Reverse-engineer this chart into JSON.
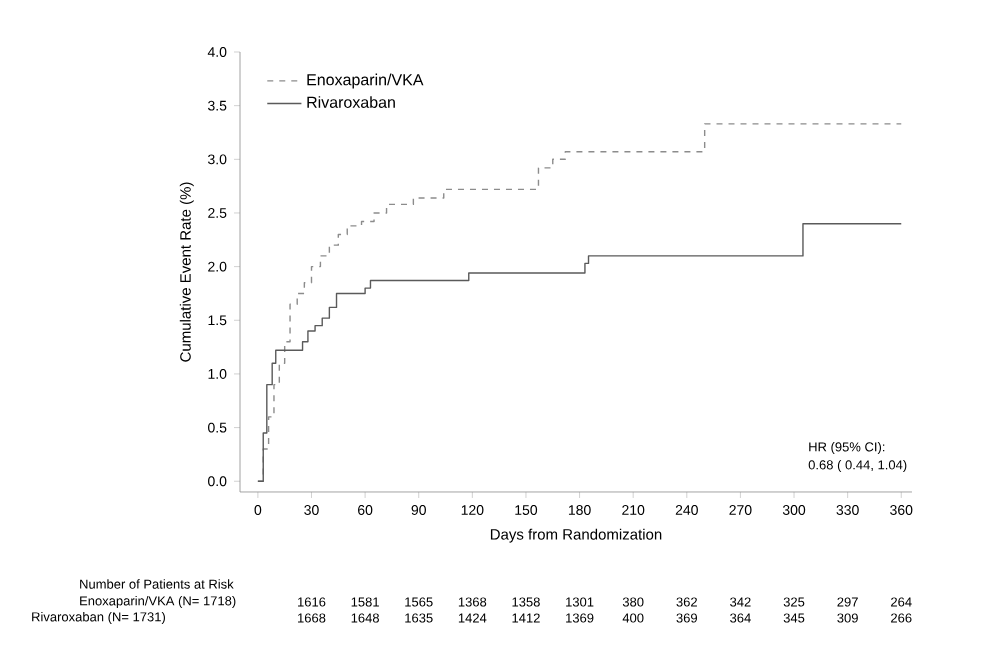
{
  "chart_data": {
    "type": "step",
    "xlabel": "Days from Randomization",
    "ylabel": "Cumulative Event Rate (%)",
    "xlim": [
      -10,
      366
    ],
    "ylim": [
      -0.1,
      4.0
    ],
    "xticks": [
      0,
      30,
      60,
      90,
      120,
      150,
      180,
      210,
      240,
      270,
      300,
      330,
      360
    ],
    "yticks": [
      {
        "value": 0,
        "label": "0.0"
      },
      0.5,
      {
        "value": 1,
        "label": "1.0"
      },
      1.5,
      {
        "value": 2,
        "label": "2.0"
      },
      2.5,
      {
        "value": 3,
        "label": "3.0"
      },
      3.5,
      {
        "value": 4,
        "label": "4.0"
      }
    ],
    "legend": "top left",
    "grid": false,
    "series": [
      {
        "name": "Enoxaparin/VKA",
        "color": "#8c8c8c",
        "line_style": "dashed",
        "x": [
          0,
          3,
          6,
          9,
          12,
          15,
          18,
          22,
          26,
          30,
          35,
          40,
          45,
          50,
          58,
          65,
          72,
          87,
          104,
          157,
          165,
          172,
          250,
          360
        ],
        "values": [
          0,
          0.3,
          0.6,
          0.9,
          1.1,
          1.3,
          1.65,
          1.75,
          1.85,
          2.0,
          2.1,
          2.2,
          2.3,
          2.38,
          2.42,
          2.5,
          2.58,
          2.64,
          2.72,
          2.92,
          3.0,
          3.07,
          3.33,
          3.33
        ]
      },
      {
        "name": "Rivaroxaban",
        "color": "#5a5a5a",
        "line_style": "solid",
        "x": [
          0,
          3,
          5,
          8,
          10,
          25,
          28,
          32,
          36,
          40,
          44,
          60,
          63,
          118,
          183,
          185,
          305,
          360
        ],
        "values": [
          0,
          0.45,
          0.9,
          1.1,
          1.22,
          1.3,
          1.4,
          1.45,
          1.52,
          1.62,
          1.75,
          1.8,
          1.87,
          1.94,
          2.03,
          2.1,
          2.4,
          2.4
        ]
      }
    ],
    "annotations": [
      "Number of Patients at Risk",
      "Enoxaparin/VKA (N= 1718)",
      "1616",
      "1581",
      "1565",
      "1368",
      "1358",
      "1301",
      "380",
      "362",
      "342",
      "325",
      "297",
      "264",
      "Rivaroxaban (N= 1731)",
      "1668",
      "1648",
      "1635",
      "1424",
      "1412",
      "1369",
      "400",
      "369",
      "364",
      "345",
      "309",
      "266",
      "HR (95% CI):",
      "0.68 ( 0.44,  1.04)"
    ]
  }
}
